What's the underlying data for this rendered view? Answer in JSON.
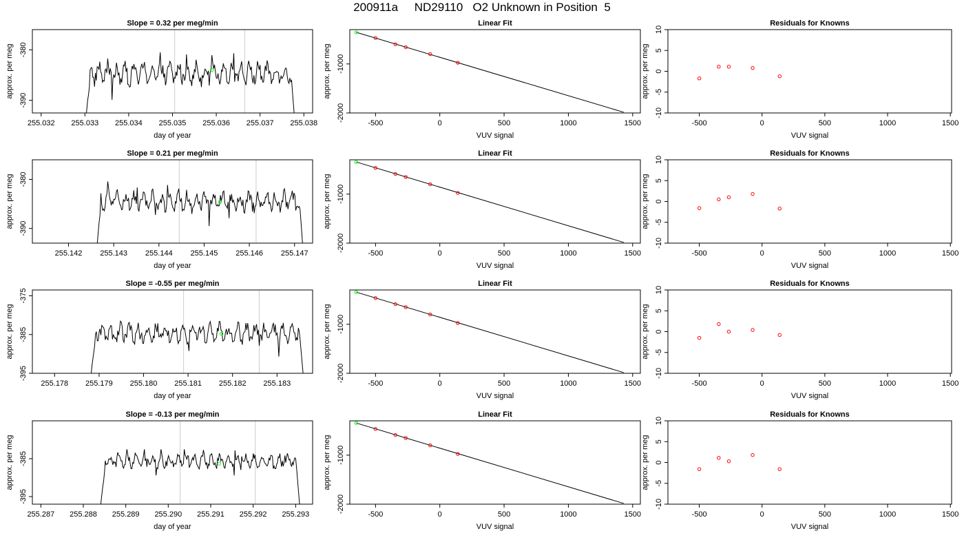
{
  "page_title": "200911a     ND29110   O2 Unknown in Position  5",
  "colors": {
    "trace": "#000000",
    "fit_line": "#000000",
    "known_points": "#ff0000",
    "unknown_point": "#00ff00",
    "marker_lines": "#cccccc",
    "axes": "#000000"
  },
  "chart_data": [
    {
      "type": "line",
      "title": "Slope =  0.32  per meg/min",
      "xlabel": "day of year",
      "ylabel": "approx. per meg",
      "xlim": [
        255.0318,
        255.0382
      ],
      "ylim": [
        -392.5,
        -376
      ],
      "xticks": [
        "255.032",
        "255.033",
        "255.034",
        "255.035",
        "255.036",
        "255.037",
        "255.038"
      ],
      "yticks": [
        "-390",
        "-380"
      ],
      "ytick_values": [
        -390,
        -380
      ],
      "trace": {
        "x_start": 255.033,
        "x_end": 255.0378,
        "min": -395,
        "max": -380.5,
        "mean": -384.6,
        "amp": 1.7
      },
      "marker_lines": [
        255.03505,
        255.03665
      ],
      "unknown_point": {
        "x": 255.0359,
        "y": -384.0
      }
    },
    {
      "type": "scatter",
      "title": "Linear Fit",
      "xlabel": "VUV signal",
      "ylabel": "approx. per meg",
      "xlim": [
        -700,
        1560
      ],
      "ylim": [
        -2000,
        -300
      ],
      "xticks": [
        "-500",
        "0",
        "500",
        "1000",
        "1500"
      ],
      "yticks": [
        "-2000",
        "-1000"
      ],
      "ytick_values": [
        -2000,
        -1000
      ],
      "fit_line": [
        [
          -650,
          -355
        ],
        [
          1430,
          -1985
        ]
      ],
      "known_points": [
        [
          -500,
          -470
        ],
        [
          -345,
          -600
        ],
        [
          -265,
          -660
        ],
        [
          -75,
          -800
        ],
        [
          140,
          -975
        ]
      ],
      "unknown_point": [
        -650,
        -355
      ]
    },
    {
      "type": "scatter",
      "title": "Residuals for Knowns",
      "xlabel": "VUV signal",
      "ylabel": "approx. per meg",
      "xlim": [
        -750,
        1510
      ],
      "ylim": [
        -10,
        10
      ],
      "xticks": [
        "-500",
        "0",
        "500",
        "1000",
        "1500"
      ],
      "yticks": [
        "-10",
        "-5",
        "0",
        "5",
        "10"
      ],
      "points": [
        [
          -500,
          -1.7
        ],
        [
          -345,
          1.1
        ],
        [
          -265,
          1.1
        ],
        [
          -75,
          0.8
        ],
        [
          140,
          -1.2
        ]
      ]
    },
    {
      "type": "line",
      "title": "Slope =  0.21  per meg/min",
      "xlabel": "day of year",
      "ylabel": "approx. per meg",
      "xlim": [
        255.1412,
        255.1474
      ],
      "ylim": [
        -393,
        -376
      ],
      "xticks": [
        "255.142",
        "255.143",
        "255.144",
        "255.145",
        "255.146",
        "255.147"
      ],
      "yticks": [
        "-390",
        "-380"
      ],
      "ytick_values": [
        -390,
        -380
      ],
      "trace": {
        "x_start": 255.1426,
        "x_end": 255.1472,
        "min": -396,
        "max": -377.5,
        "mean": -384.5,
        "amp": 1.6
      },
      "marker_lines": [
        255.14445,
        255.14615
      ],
      "unknown_point": {
        "x": 255.14535,
        "y": -384.6
      }
    },
    {
      "type": "scatter",
      "title": "Linear Fit",
      "xlabel": "VUV signal",
      "ylabel": "approx. per meg",
      "xlim": [
        -700,
        1560
      ],
      "ylim": [
        -2000,
        -300
      ],
      "xticks": [
        "-500",
        "0",
        "500",
        "1000",
        "1500"
      ],
      "yticks": [
        "-2000",
        "-1000"
      ],
      "ytick_values": [
        -2000,
        -1000
      ],
      "fit_line": [
        [
          -650,
          -345
        ],
        [
          1430,
          -1985
        ]
      ],
      "known_points": [
        [
          -500,
          -465
        ],
        [
          -345,
          -590
        ],
        [
          -265,
          -650
        ],
        [
          -75,
          -800
        ],
        [
          140,
          -975
        ]
      ],
      "unknown_point": [
        -650,
        -345
      ]
    },
    {
      "type": "scatter",
      "title": "Residuals for Knowns",
      "xlabel": "VUV signal",
      "ylabel": "approx. per meg",
      "xlim": [
        -750,
        1510
      ],
      "ylim": [
        -10,
        10
      ],
      "xticks": [
        "-500",
        "0",
        "500",
        "1000",
        "1500"
      ],
      "yticks": [
        "-10",
        "-5",
        "0",
        "5",
        "10"
      ],
      "points": [
        [
          -500,
          -1.6
        ],
        [
          -345,
          0.5
        ],
        [
          -265,
          1.0
        ],
        [
          -75,
          1.8
        ],
        [
          140,
          -1.7
        ]
      ]
    },
    {
      "type": "line",
      "title": "Slope =  -0.55  per meg/min",
      "xlabel": "day of year",
      "ylabel": "approx. per meg",
      "xlim": [
        255.1775,
        255.1838
      ],
      "ylim": [
        -395,
        -373.5
      ],
      "xticks": [
        "255.178",
        "255.179",
        "255.180",
        "255.181",
        "255.182",
        "255.183"
      ],
      "yticks": [
        "-395",
        "-385",
        "-375"
      ],
      "ytick_values": [
        -395,
        -385,
        -375
      ],
      "trace": {
        "x_start": 255.1788,
        "x_end": 255.1836,
        "min": -397,
        "max": -380.5,
        "mean": -384.6,
        "amp": 1.9
      },
      "marker_lines": [
        255.1809,
        255.1826
      ],
      "unknown_point": {
        "x": 255.18175,
        "y": -384.8
      }
    },
    {
      "type": "scatter",
      "title": "Linear Fit",
      "xlabel": "VUV signal",
      "ylabel": "approx. per meg",
      "xlim": [
        -700,
        1560
      ],
      "ylim": [
        -2000,
        -300
      ],
      "xticks": [
        "-500",
        "0",
        "500",
        "1000",
        "1500"
      ],
      "yticks": [
        "-2000",
        "-1000"
      ],
      "ytick_values": [
        -2000,
        -1000
      ],
      "fit_line": [
        [
          -650,
          -345
        ],
        [
          1430,
          -1985
        ]
      ],
      "known_points": [
        [
          -500,
          -465
        ],
        [
          -345,
          -590
        ],
        [
          -265,
          -650
        ],
        [
          -75,
          -800
        ],
        [
          140,
          -975
        ]
      ],
      "unknown_point": [
        -650,
        -345
      ]
    },
    {
      "type": "scatter",
      "title": "Residuals for Knowns",
      "xlabel": "VUV signal",
      "ylabel": "approx. per meg",
      "xlim": [
        -750,
        1510
      ],
      "ylim": [
        -10,
        10
      ],
      "xticks": [
        "-500",
        "0",
        "500",
        "1000",
        "1500"
      ],
      "yticks": [
        "-10",
        "-5",
        "0",
        "5",
        "10"
      ],
      "points": [
        [
          -500,
          -1.5
        ],
        [
          -345,
          1.8
        ],
        [
          -265,
          0.0
        ],
        [
          -75,
          0.4
        ],
        [
          140,
          -0.8
        ]
      ]
    },
    {
      "type": "line",
      "title": "Slope =  -0.13  per meg/min",
      "xlabel": "day of year",
      "ylabel": "approx. per meg",
      "xlim": [
        255.2868,
        255.2934
      ],
      "ylim": [
        -397,
        -375
      ],
      "xticks": [
        "255.287",
        "255.288",
        "255.289",
        "255.290",
        "255.291",
        "255.292",
        "255.293"
      ],
      "yticks": [
        "-395",
        "-385"
      ],
      "ytick_values": [
        -395,
        -385
      ],
      "trace": {
        "x_start": 255.2884,
        "x_end": 255.2931,
        "min": -398,
        "max": -382.5,
        "mean": -385.6,
        "amp": 1.4
      },
      "marker_lines": [
        255.29028,
        255.29205
      ],
      "unknown_point": {
        "x": 255.2912,
        "y": -386.3
      }
    },
    {
      "type": "scatter",
      "title": "Linear Fit",
      "xlabel": "VUV signal",
      "ylabel": "approx. per meg",
      "xlim": [
        -700,
        1560
      ],
      "ylim": [
        -2000,
        -300
      ],
      "xticks": [
        "-500",
        "0",
        "500",
        "1000",
        "1500"
      ],
      "yticks": [
        "-2000",
        "-1000"
      ],
      "ytick_values": [
        -2000,
        -1000
      ],
      "fit_line": [
        [
          -650,
          -345
        ],
        [
          1430,
          -1985
        ]
      ],
      "known_points": [
        [
          -500,
          -465
        ],
        [
          -345,
          -590
        ],
        [
          -265,
          -650
        ],
        [
          -75,
          -800
        ],
        [
          140,
          -975
        ]
      ],
      "unknown_point": [
        -650,
        -345
      ]
    },
    {
      "type": "scatter",
      "title": "Residuals for Knowns",
      "xlabel": "VUV signal",
      "ylabel": "approx. per meg",
      "xlim": [
        -750,
        1510
      ],
      "ylim": [
        -10,
        10
      ],
      "xticks": [
        "-500",
        "0",
        "500",
        "1000",
        "1500"
      ],
      "yticks": [
        "-10",
        "-5",
        "0",
        "5",
        "10"
      ],
      "points": [
        [
          -500,
          -1.6
        ],
        [
          -345,
          1.1
        ],
        [
          -265,
          0.3
        ],
        [
          -75,
          1.8
        ],
        [
          140,
          -1.6
        ]
      ]
    }
  ]
}
